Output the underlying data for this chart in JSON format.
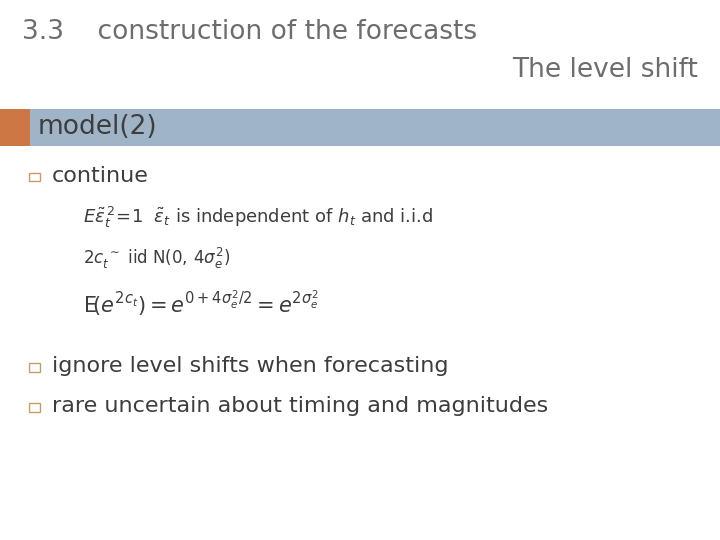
{
  "title_line1": "3.3    construction of the forecasts",
  "title_line2": "The level shift",
  "subtitle": "model(2)",
  "title_color": "#6d6d6d",
  "header_bar_color": "#a0b4c8",
  "header_orange_color": "#cc7744",
  "bullet_box_color": "#cc9966",
  "bullet1": "continue",
  "bullet2": "ignore level shifts when forecasting",
  "bullet3": "rare uncertain about timing and magnitudes",
  "bg_color": "#ffffff",
  "font_color": "#3d3d3d",
  "title_fontsize": 19,
  "subtitle_fontsize": 19,
  "body_fontsize": 16,
  "math_fontsize": 13
}
